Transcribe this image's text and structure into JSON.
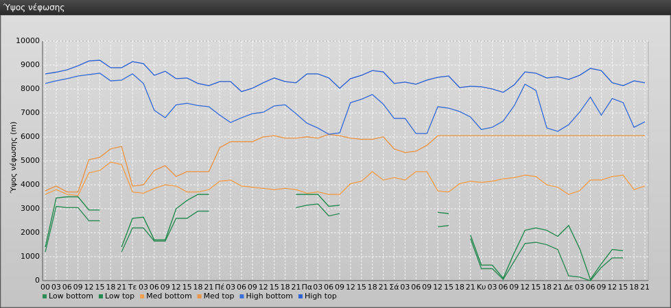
{
  "window_title": "Ύψος νέφωσης",
  "chart_data": {
    "type": "line",
    "y_label": "Ύψος νέφωσης (m)",
    "categories": [
      "00",
      "03",
      "06",
      "09",
      "12",
      "15",
      "18",
      "21",
      "Τε",
      "03",
      "06",
      "09",
      "12",
      "15",
      "18",
      "21",
      "Πέ",
      "03",
      "06",
      "09",
      "12",
      "15",
      "18",
      "21",
      "Πα",
      "03",
      "06",
      "09",
      "12",
      "15",
      "18",
      "21",
      "Σά",
      "03",
      "06",
      "09",
      "12",
      "15",
      "18",
      "21",
      "Κυ",
      "03",
      "06",
      "09",
      "12",
      "15",
      "18",
      "21",
      "Δε",
      "03",
      "06",
      "09",
      "12",
      "15",
      "18",
      "21"
    ],
    "ylim": [
      0,
      10000
    ],
    "yticks": [
      0,
      1000,
      2000,
      3000,
      4000,
      5000,
      6000,
      7000,
      8000,
      9000,
      10000
    ],
    "grid": true,
    "legend": "bottom",
    "series": [
      {
        "name": "Low bottom",
        "color": "#2e8b57",
        "values": [
          1200,
          3100,
          3050,
          3050,
          2500,
          2500,
          null,
          1200,
          2200,
          2200,
          1650,
          1650,
          2600,
          2600,
          2900,
          2900,
          null,
          null,
          null,
          null,
          null,
          null,
          null,
          3050,
          3150,
          3200,
          2700,
          2800,
          null,
          null,
          null,
          null,
          null,
          null,
          null,
          null,
          2250,
          2300,
          null,
          1750,
          500,
          500,
          50,
          800,
          1550,
          1600,
          1500,
          1300,
          200,
          150,
          0,
          550,
          950,
          950,
          null,
          null
        ]
      },
      {
        "name": "Low top",
        "color": "#238a4f",
        "values": [
          1400,
          3450,
          3500,
          3500,
          2950,
          2950,
          null,
          1400,
          2600,
          2650,
          1700,
          1700,
          3000,
          3350,
          3600,
          3600,
          null,
          null,
          null,
          null,
          null,
          null,
          null,
          3600,
          3600,
          3600,
          3100,
          3150,
          null,
          null,
          null,
          null,
          null,
          null,
          null,
          null,
          2850,
          2800,
          null,
          1900,
          650,
          650,
          100,
          1150,
          2100,
          2200,
          2100,
          1850,
          2300,
          1350,
          50,
          700,
          1300,
          1250,
          null,
          null
        ]
      },
      {
        "name": "Med bottom",
        "color": "#f0a050",
        "values": [
          3600,
          3800,
          3600,
          3550,
          4500,
          4600,
          4950,
          4850,
          3700,
          3650,
          3850,
          4000,
          3950,
          3700,
          3700,
          3800,
          4150,
          4200,
          3950,
          3900,
          3850,
          3800,
          3850,
          3800,
          3650,
          3700,
          3600,
          3600,
          4050,
          4150,
          4550,
          4200,
          4300,
          4200,
          4550,
          4550,
          3750,
          3700,
          4050,
          4150,
          4100,
          4150,
          4250,
          4300,
          4400,
          4350,
          4000,
          3900,
          3600,
          3750,
          4200,
          4200,
          4350,
          4400,
          3800,
          3950
        ]
      },
      {
        "name": "Med top",
        "color": "#e8964a",
        "values": [
          3750,
          3950,
          3700,
          3700,
          5050,
          5150,
          5500,
          5600,
          3950,
          4000,
          4600,
          4800,
          4350,
          4550,
          4550,
          4550,
          5550,
          5800,
          5800,
          5800,
          6000,
          6050,
          5950,
          5950,
          6000,
          5950,
          6100,
          6050,
          5950,
          5900,
          5900,
          6000,
          5500,
          5350,
          5400,
          5650,
          6050,
          6050,
          6050,
          6050,
          6050,
          6050,
          6050,
          6050,
          6050,
          6050,
          6050,
          6050,
          6050,
          6050,
          6050,
          6050,
          6050,
          6050,
          6050,
          6050
        ]
      },
      {
        "name": "High bottom",
        "color": "#3a6fd8",
        "values": [
          8230,
          8340,
          8430,
          8540,
          8600,
          8660,
          8340,
          8370,
          8630,
          8230,
          7110,
          6800,
          7340,
          7400,
          7310,
          7260,
          6910,
          6600,
          6800,
          6970,
          7030,
          7290,
          7340,
          6970,
          6570,
          6370,
          6110,
          6170,
          7430,
          7570,
          7770,
          7370,
          6770,
          6770,
          6140,
          6140,
          7260,
          7200,
          7060,
          6830,
          6310,
          6400,
          6660,
          7290,
          8200,
          7940,
          6370,
          6230,
          6510,
          7030,
          7660,
          6910,
          7600,
          7430,
          6400,
          6630
        ]
      },
      {
        "name": "High top",
        "color": "#2f62d2",
        "values": [
          8630,
          8700,
          8800,
          8970,
          9170,
          9200,
          8890,
          8890,
          9140,
          9060,
          8570,
          8740,
          8430,
          8460,
          8230,
          8140,
          8310,
          8310,
          7890,
          8030,
          8260,
          8460,
          8310,
          8260,
          8630,
          8630,
          8460,
          8030,
          8430,
          8570,
          8770,
          8710,
          8230,
          8290,
          8200,
          8370,
          8490,
          8540,
          8060,
          8110,
          8090,
          8000,
          7860,
          8170,
          8710,
          8660,
          8460,
          8510,
          8400,
          8570,
          8860,
          8770,
          8260,
          8140,
          8340,
          8260
        ]
      }
    ]
  }
}
